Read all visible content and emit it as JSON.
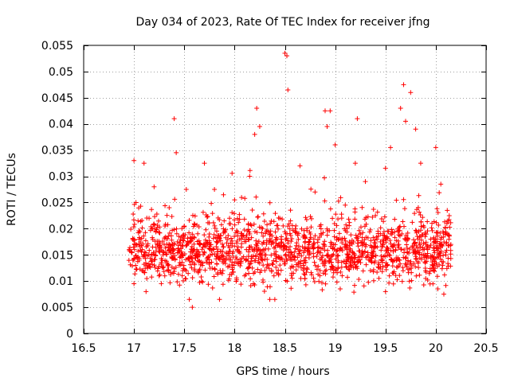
{
  "chart_data": {
    "type": "scatter",
    "title": "Day 034 of 2023, Rate Of TEC Index for receiver jfng",
    "xlabel": "GPS time / hours",
    "ylabel": "ROTI / TECUs",
    "xlim": [
      16.5,
      20.5
    ],
    "ylim": [
      0,
      0.055
    ],
    "x_ticks": [
      16.5,
      17,
      17.5,
      18,
      18.5,
      19,
      19.5,
      20,
      20.5
    ],
    "x_tick_labels": [
      "16.5",
      "17",
      "17.5",
      "18",
      "18.5",
      "19",
      "19.5",
      "20",
      "20.5"
    ],
    "y_ticks": [
      0,
      0.005,
      0.01,
      0.015,
      0.02,
      0.025,
      0.03,
      0.035,
      0.04,
      0.045,
      0.05,
      0.055
    ],
    "y_tick_labels": [
      "0",
      "0.005",
      "0.01",
      "0.015",
      "0.02",
      "0.025",
      "0.03",
      "0.035",
      "0.04",
      "0.045",
      "0.05",
      "0.055"
    ],
    "grid": true,
    "marker": "+",
    "color": "#ff0000",
    "series": [
      {
        "name": "ROTI",
        "x_range": [
          16.95,
          20.15
        ],
        "typical_range": [
          0.008,
          0.025
        ],
        "points": [
          [
            17.0,
            0.033
          ],
          [
            17.0,
            0.0095
          ],
          [
            17.02,
            0.025
          ],
          [
            17.05,
            0.018
          ],
          [
            17.08,
            0.012
          ],
          [
            17.1,
            0.0325
          ],
          [
            17.12,
            0.008
          ],
          [
            17.15,
            0.022
          ],
          [
            17.18,
            0.015
          ],
          [
            17.2,
            0.028
          ],
          [
            17.25,
            0.011
          ],
          [
            17.3,
            0.017
          ],
          [
            17.35,
            0.024
          ],
          [
            17.4,
            0.041
          ],
          [
            17.42,
            0.0345
          ],
          [
            17.45,
            0.013
          ],
          [
            17.5,
            0.0205
          ],
          [
            17.52,
            0.0275
          ],
          [
            17.55,
            0.0065
          ],
          [
            17.58,
            0.005
          ],
          [
            17.6,
            0.016
          ],
          [
            17.65,
            0.012
          ],
          [
            17.7,
            0.0325
          ],
          [
            17.75,
            0.019
          ],
          [
            17.8,
            0.0275
          ],
          [
            17.85,
            0.0065
          ],
          [
            17.9,
            0.014
          ],
          [
            17.95,
            0.022
          ],
          [
            18.0,
            0.0255
          ],
          [
            18.05,
            0.018
          ],
          [
            18.1,
            0.011
          ],
          [
            18.15,
            0.03
          ],
          [
            18.2,
            0.038
          ],
          [
            18.22,
            0.043
          ],
          [
            18.25,
            0.0395
          ],
          [
            18.3,
            0.015
          ],
          [
            18.35,
            0.0065
          ],
          [
            18.4,
            0.0065
          ],
          [
            18.45,
            0.022
          ],
          [
            18.5,
            0.0535
          ],
          [
            18.52,
            0.053
          ],
          [
            18.53,
            0.0465
          ],
          [
            18.6,
            0.014
          ],
          [
            18.65,
            0.032
          ],
          [
            18.7,
            0.0105
          ],
          [
            18.75,
            0.018
          ],
          [
            18.8,
            0.027
          ],
          [
            18.85,
            0.012
          ],
          [
            18.9,
            0.0425
          ],
          [
            18.92,
            0.0395
          ],
          [
            18.95,
            0.0425
          ],
          [
            19.0,
            0.036
          ],
          [
            19.05,
            0.0085
          ],
          [
            19.1,
            0.0245
          ],
          [
            19.15,
            0.014
          ],
          [
            19.2,
            0.0325
          ],
          [
            19.22,
            0.041
          ],
          [
            19.3,
            0.029
          ],
          [
            19.35,
            0.012
          ],
          [
            19.4,
            0.0225
          ],
          [
            19.45,
            0.0175
          ],
          [
            19.5,
            0.008
          ],
          [
            19.55,
            0.0355
          ],
          [
            19.6,
            0.016
          ],
          [
            19.65,
            0.043
          ],
          [
            19.68,
            0.0475
          ],
          [
            19.7,
            0.0405
          ],
          [
            19.75,
            0.046
          ],
          [
            19.8,
            0.039
          ],
          [
            19.85,
            0.0325
          ],
          [
            19.9,
            0.0105
          ],
          [
            19.95,
            0.018
          ],
          [
            20.0,
            0.0355
          ],
          [
            20.02,
            0.0085
          ],
          [
            20.05,
            0.0285
          ],
          [
            20.08,
            0.0075
          ],
          [
            20.1,
            0.015
          ],
          [
            20.12,
            0.0215
          ],
          [
            20.15,
            0.017
          ]
        ]
      }
    ]
  }
}
